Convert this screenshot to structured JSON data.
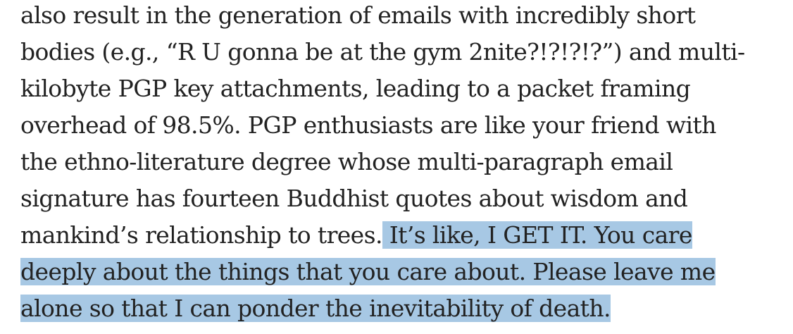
{
  "text": {
    "lines": [
      "also result in the generation of emails with incredibly short",
      "bodies (e.g., “R U gonna be at the gym 2nite?!?!?!?”) and multi-",
      "kilobyte PGP key attachments, leading to a packet framing",
      "overhead of 98.5%. PGP enthusiasts are like your friend with",
      "the ethno-literature degree whose multi-paragraph email",
      "signature has fourteen Buddhist quotes about wisdom and"
    ],
    "line7_plain": "mankind’s relationship to trees.",
    "line7_highlight": " It’s like, I GET IT. You care",
    "line8_highlight": "deeply about the things that you care about. Please leave me",
    "line9_highlight": "alone so that I can ponder the inevitability of death."
  },
  "colors": {
    "text": "#222222",
    "selection_highlight": "#a7c8e4",
    "background": "#ffffff"
  }
}
